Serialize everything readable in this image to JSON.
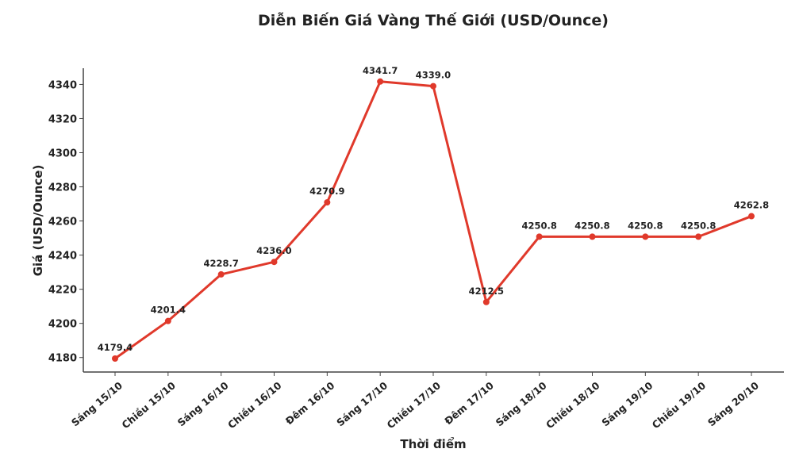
{
  "chart_data": {
    "type": "line",
    "title": "Diễn Biến Giá Vàng Thế Giới (USD/Ounce)",
    "xlabel": "Thời điểm",
    "ylabel": "Giá (USD/Ounce)",
    "categories": [
      "Sáng 15/10",
      "Chiều 15/10",
      "Sáng 16/10",
      "Chiều 16/10",
      "Đêm 16/10",
      "Sáng 17/10",
      "Chiều 17/10",
      "Đêm 17/10",
      "Sáng 18/10",
      "Chiều 18/10",
      "Sáng 19/10",
      "Chiều 19/10",
      "Sáng 20/10"
    ],
    "values": [
      4179.4,
      4201.4,
      4228.7,
      4236.0,
      4270.9,
      4341.7,
      4339.0,
      4212.5,
      4250.8,
      4250.8,
      4250.8,
      4250.8,
      4262.8
    ],
    "data_labels": [
      "4179.4",
      "4201.4",
      "4228.7",
      "4236.0",
      "4270.9",
      "4341.7",
      "4339.0",
      "4212.5",
      "4250.8",
      "4250.8",
      "4250.8",
      "4250.8",
      "4262.8"
    ],
    "yticks": [
      "4180",
      "4200",
      "4220",
      "4240",
      "4260",
      "4280",
      "4300",
      "4320",
      "4340"
    ],
    "ylim": [
      4171.5,
      4349.5
    ],
    "grid": false,
    "line_color": "#e0392b"
  }
}
